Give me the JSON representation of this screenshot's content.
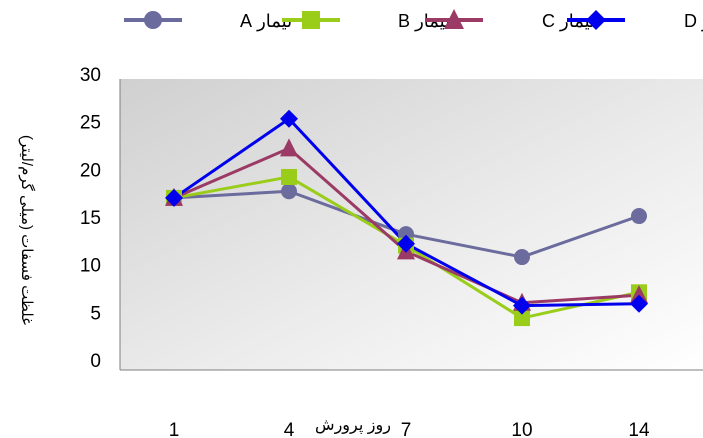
{
  "chart_data": {
    "type": "line",
    "categories": [
      "1",
      "4",
      "7",
      "10",
      "14"
    ],
    "x_axis_annotation": "روز پرورش",
    "ylabel": "غلظت فسفات (میلی گرم/لیتر)",
    "ylim": [
      0,
      30
    ],
    "y_ticks": [
      "0",
      "5",
      "10",
      "15",
      "20",
      "25",
      "30"
    ],
    "grid": false,
    "legend_position": "top",
    "series": [
      {
        "name": "تیمار A",
        "values": [
          17,
          17.7,
          13.2,
          10.8,
          15.1
        ],
        "color": "#6b6b9e",
        "marker": "circle"
      },
      {
        "name": "تیمار B",
        "values": [
          17,
          19.2,
          12,
          4.4,
          7.1
        ],
        "color": "#9acd1a",
        "marker": "square"
      },
      {
        "name": "تیمار C",
        "values": [
          17,
          22.2,
          11.4,
          6,
          6.8
        ],
        "color": "#9b3a64",
        "marker": "triangle"
      },
      {
        "name": "تیمار D",
        "values": [
          17,
          25.3,
          12.2,
          5.7,
          5.9
        ],
        "color": "#0000ee",
        "marker": "diamond"
      }
    ]
  }
}
